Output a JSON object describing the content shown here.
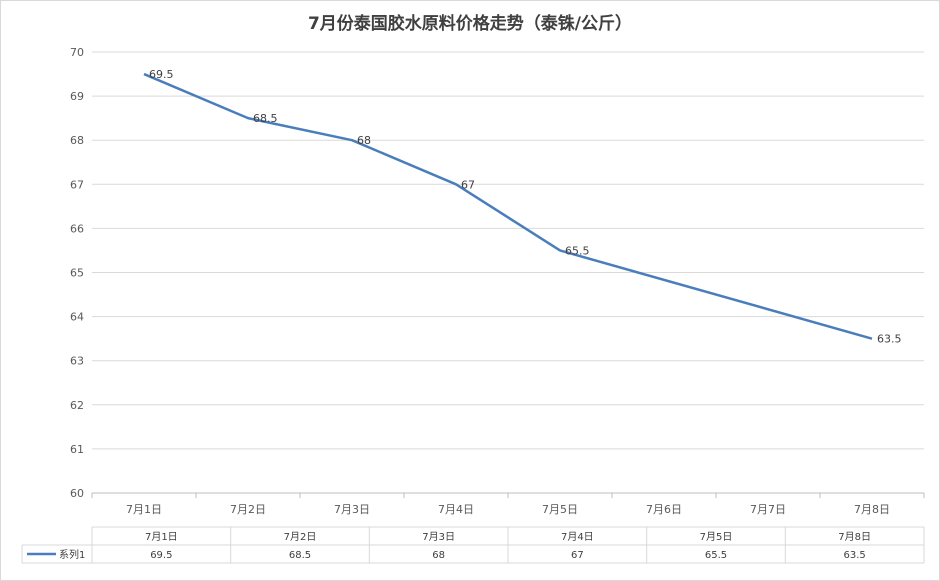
{
  "chart_data": {
    "type": "line",
    "title": "7月份泰国胶水原料价格走势（泰铢/公斤）",
    "categories": [
      "7月1日",
      "7月2日",
      "7月3日",
      "7月4日",
      "7月5日",
      "7月6日",
      "7月7日",
      "7月8日"
    ],
    "series": [
      {
        "name": "系列1",
        "color": "#4a7ebb",
        "values": [
          69.5,
          68.5,
          68,
          67,
          65.5,
          null,
          null,
          63.5
        ],
        "data_labels": [
          "69.5",
          "68.5",
          "68",
          "67",
          "65.5",
          "",
          "",
          "63.5"
        ]
      }
    ],
    "ylim": [
      60,
      70
    ],
    "yticks": [
      "60",
      "61",
      "62",
      "63",
      "64",
      "65",
      "66",
      "67",
      "68",
      "69",
      "70"
    ],
    "grid": true,
    "data_table": {
      "headers": [
        "7月1日",
        "7月2日",
        "7月3日",
        "7月4日",
        "7月5日",
        "7月8日"
      ],
      "series_name": "系列1",
      "values": [
        "69.5",
        "68.5",
        "68",
        "67",
        "65.5",
        "63.5"
      ]
    }
  }
}
